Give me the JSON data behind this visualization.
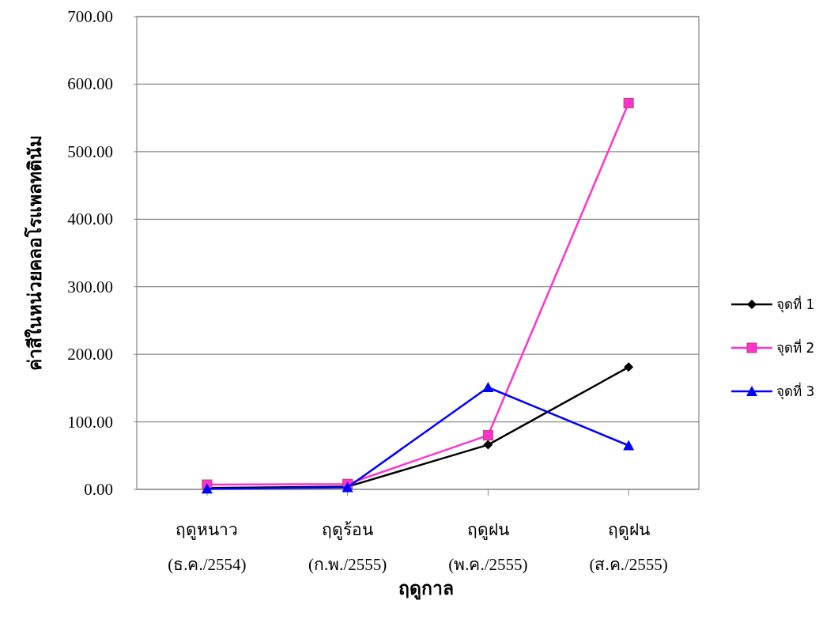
{
  "chart_data": {
    "type": "line",
    "xlabel": "ฤดูกาล",
    "ylabel": "ค่าสีในหน่วยคลอโรแพลทตินัม",
    "categories": [
      "ฤดูหนาว\n(ธ.ค./2554)",
      "ฤดูร้อน\n(ก.พ./2555)",
      "ฤดูฝน\n(พ.ค./2555)",
      "ฤดูฝน\n(ส.ค./2555)"
    ],
    "series": [
      {
        "name": "จุดที่ 1",
        "color": "#000000",
        "marker": "diamond",
        "values": [
          2,
          4,
          66,
          181
        ]
      },
      {
        "name": "จุดที่ 2",
        "color": "#ff33cc",
        "marker": "square",
        "values": [
          7,
          8,
          80,
          572
        ]
      },
      {
        "name": "จุดที่ 3",
        "color": "#0000ff",
        "marker": "triangle",
        "values": [
          1,
          3,
          151,
          65
        ]
      }
    ],
    "ylim": [
      0,
      700
    ],
    "yticks": [
      {
        "value": 0,
        "label": "0.00"
      },
      {
        "value": 100,
        "label": "100.00"
      },
      {
        "value": 200,
        "label": "200.00"
      },
      {
        "value": 300,
        "label": "300.00"
      },
      {
        "value": 400,
        "label": "400.00"
      },
      {
        "value": 500,
        "label": "500.00"
      },
      {
        "value": 600,
        "label": "600.00"
      },
      {
        "value": 700,
        "label": "700.00"
      }
    ],
    "grid": "y",
    "legend": "right",
    "line_style": "solid"
  }
}
